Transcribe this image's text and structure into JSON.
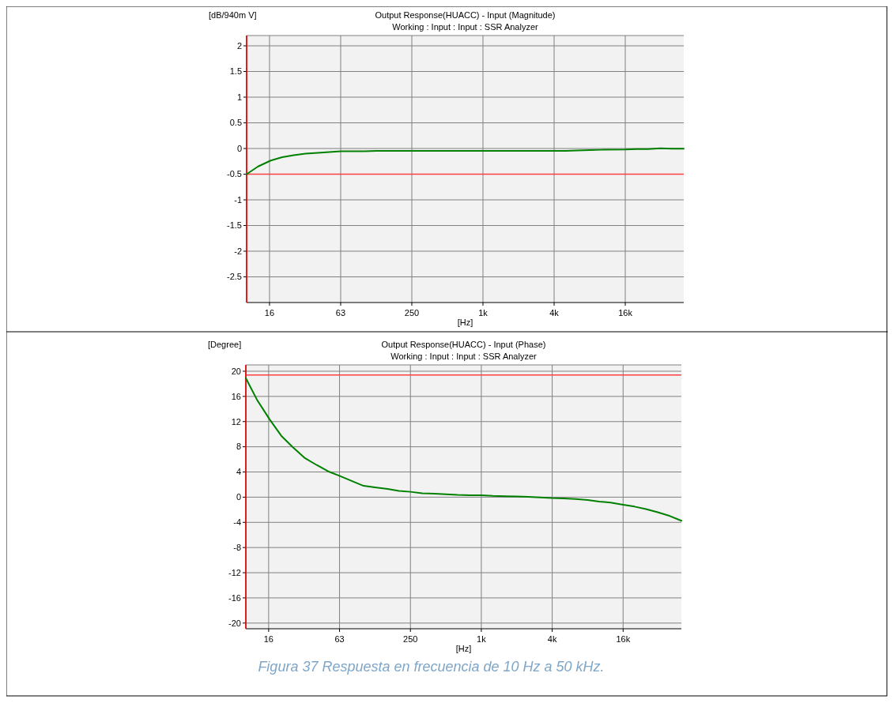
{
  "chart_data": [
    {
      "type": "line",
      "title": "Output Response(HUACC) - Input (Magnitude)",
      "subtitle": "Working : Input : Input : SSR Analyzer",
      "ylabel": "[dB/940m V]",
      "xlabel": "[Hz]",
      "log": "x",
      "grid": true,
      "xlim": [
        10,
        50000
      ],
      "xticks": [
        {
          "value": 15.625,
          "label": "16"
        },
        {
          "value": 62.5,
          "label": "63"
        },
        250,
        {
          "value": 1000,
          "label": "1k"
        },
        {
          "value": 4000,
          "label": "4k"
        },
        {
          "value": 16000,
          "label": "16k"
        }
      ],
      "ylim": [
        -3,
        2.2
      ],
      "yticks": [
        -2.5,
        -2,
        -1.5,
        -1,
        -0.5,
        0,
        0.5,
        1,
        1.5,
        2
      ],
      "x": [
        10,
        12.5,
        16,
        20,
        25,
        31.5,
        40,
        50,
        63,
        80,
        100,
        125,
        200,
        500,
        1000,
        2000,
        5000,
        6300,
        8000,
        10000,
        16000,
        20000,
        25000,
        31500,
        40000,
        50000
      ],
      "series": [
        {
          "color": "#008000",
          "values": [
            -0.5,
            -0.35,
            -0.235,
            -0.17,
            -0.13,
            -0.1,
            -0.085,
            -0.07,
            -0.055,
            -0.055,
            -0.055,
            -0.045,
            -0.045,
            -0.045,
            -0.045,
            -0.045,
            -0.045,
            -0.04,
            -0.03,
            -0.025,
            -0.02,
            -0.01,
            -0.01,
            0.005,
            -0.005,
            -0.005
          ]
        }
      ],
      "ref_lines": [
        {
          "axis": "y",
          "value": -0.5,
          "color": "#ff4040"
        },
        {
          "axis": "x",
          "value": 10,
          "color": "#ff0000"
        }
      ]
    },
    {
      "type": "line",
      "title": "Output Response(HUACC) - Input (Phase)",
      "subtitle": "Working : Input : Input : SSR Analyzer",
      "ylabel": "[Degree]",
      "xlabel": "[Hz]",
      "log": "x",
      "grid": true,
      "xlim": [
        10,
        50000
      ],
      "xticks": [
        {
          "value": 15.625,
          "label": "16"
        },
        {
          "value": 62.5,
          "label": "63"
        },
        250,
        {
          "value": 1000,
          "label": "1k"
        },
        {
          "value": 4000,
          "label": "4k"
        },
        {
          "value": 16000,
          "label": "16k"
        }
      ],
      "ylim": [
        -20.9,
        21
      ],
      "yticks": [
        -20,
        -16,
        -12,
        -8,
        -4,
        0,
        4,
        8,
        12,
        16,
        20
      ],
      "x": [
        10,
        12.5,
        16,
        20,
        25,
        31.5,
        40,
        50,
        63,
        80,
        100,
        125,
        160,
        200,
        250,
        315,
        400,
        500,
        630,
        800,
        1000,
        1250,
        1600,
        2000,
        2500,
        3150,
        4000,
        5000,
        6300,
        8000,
        10000,
        12500,
        16000,
        20000,
        25000,
        31500,
        40000,
        50000
      ],
      "series": [
        {
          "color": "#008000",
          "values": [
            18.9,
            15.4,
            12.3,
            9.75,
            7.95,
            6.25,
            5.1,
            4.1,
            3.35,
            2.55,
            1.8,
            1.55,
            1.3,
            1.0,
            0.85,
            0.6,
            0.55,
            0.45,
            0.35,
            0.3,
            0.3,
            0.2,
            0.15,
            0.1,
            0.05,
            -0.05,
            -0.15,
            -0.2,
            -0.3,
            -0.45,
            -0.7,
            -0.85,
            -1.2,
            -1.5,
            -1.9,
            -2.4,
            -3.0,
            -3.75
          ]
        }
      ],
      "ref_lines": [
        {
          "axis": "y",
          "value": 19.4,
          "color": "#ff4040"
        },
        {
          "axis": "x",
          "value": 10,
          "color": "#ff0000"
        }
      ],
      "annotations": [
        "Figura  37 Respuesta en frecuencia de 10 Hz a 50 kHz."
      ]
    }
  ]
}
